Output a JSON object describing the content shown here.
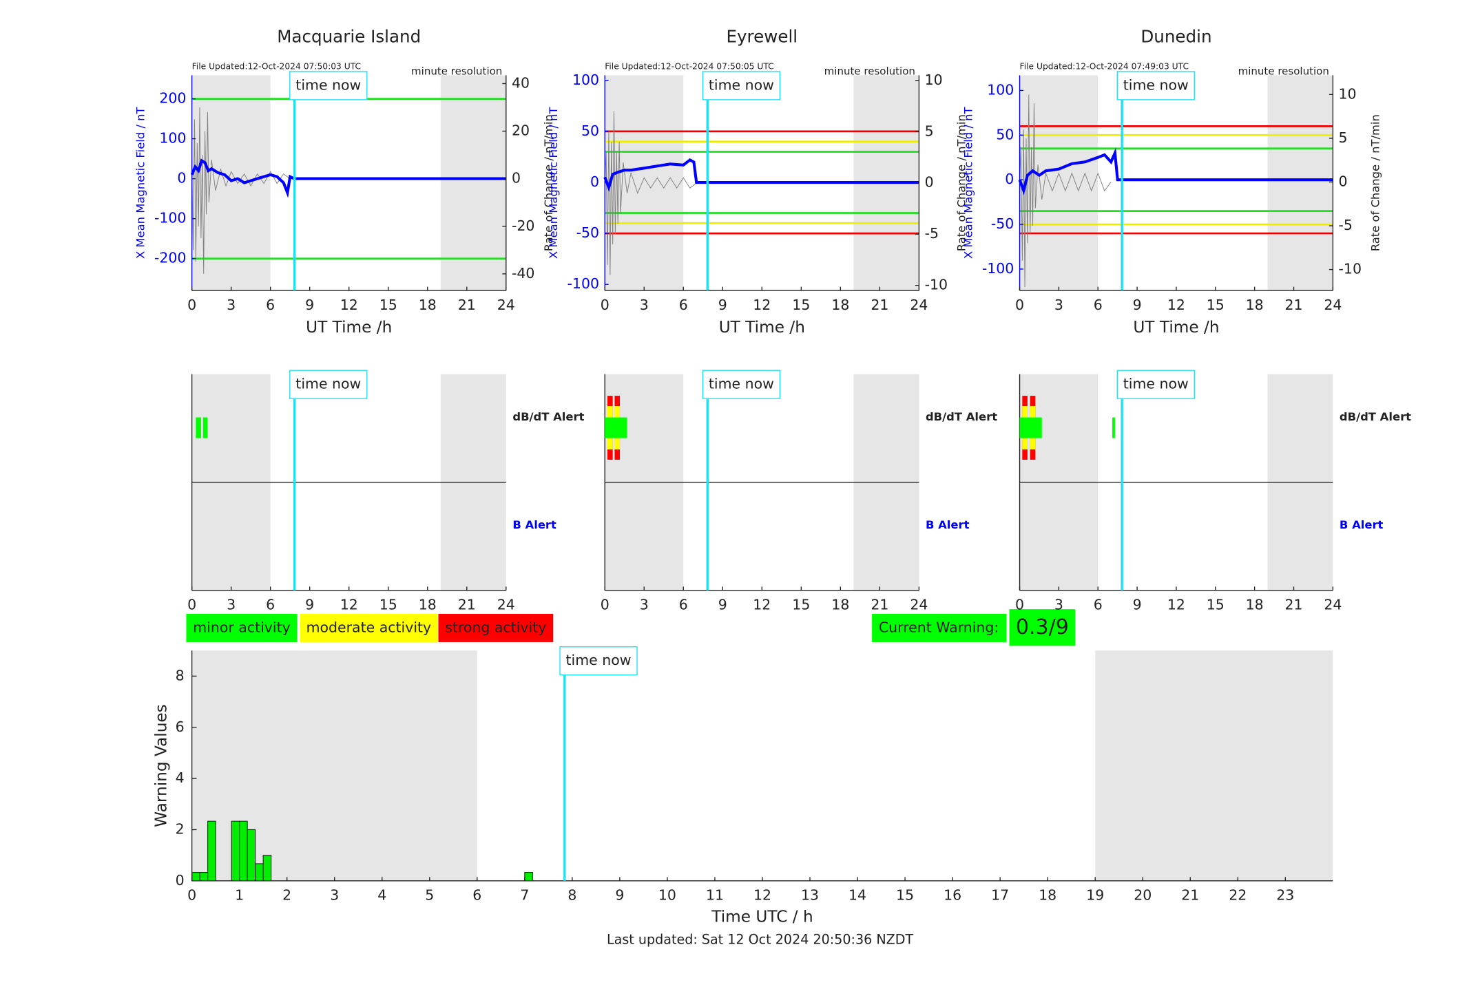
{
  "chart_data": [
    {
      "type": "line",
      "title": "Macquarie Island",
      "file_updated": "File Updated:12-Oct-2024 07:50:03 UTC",
      "resolution": "minute resolution",
      "xlabel": "UT Time /h",
      "ylabel": "X Mean Magnetic Field / nT",
      "y2label": "Rate of Change / nT/min",
      "ylabel_color": "#0000ff",
      "xlim": [
        0,
        24
      ],
      "xticks": [
        0,
        3,
        6,
        9,
        12,
        15,
        18,
        21,
        24
      ],
      "ylim": [
        -280,
        259
      ],
      "yticks": [
        -200,
        -100,
        0,
        100,
        200
      ],
      "y2lim": [
        -47,
        43.5
      ],
      "y2ticks": [
        -40,
        -20,
        0,
        20,
        40
      ],
      "night": [
        [
          0,
          6
        ],
        [
          19,
          24
        ]
      ],
      "time_now": 7.84,
      "time_now_label": "time now",
      "thresholds": [
        {
          "value": 200,
          "color": "#22dd22"
        },
        {
          "value": -200,
          "color": "#22dd22"
        }
      ],
      "series": [
        {
          "color": "#808080",
          "axis": "y2",
          "x": [
            0,
            0.1,
            0.2,
            0.3,
            0.4,
            0.5,
            0.6,
            0.7,
            0.8,
            0.9,
            1,
            1.1,
            1.2,
            1.3,
            1.5,
            1.8,
            2.2,
            2.6,
            3,
            3.5,
            4,
            4.5,
            5,
            5.5,
            6,
            6.5,
            7,
            7.5
          ],
          "values": [
            5,
            -30,
            25,
            -35,
            15,
            -20,
            30,
            -25,
            10,
            -40,
            20,
            -15,
            28,
            -10,
            8,
            -5,
            4,
            -3,
            3,
            -2,
            2,
            -3,
            2,
            -2,
            3,
            -2,
            2,
            0
          ]
        },
        {
          "color": "#0000ff",
          "x": [
            0,
            0.25,
            0.5,
            0.75,
            1,
            1.25,
            1.5,
            2,
            2.5,
            3,
            3.5,
            4,
            4.5,
            5,
            5.5,
            6,
            6.5,
            7,
            7.3,
            7.5,
            7.8,
            8,
            24
          ],
          "values": [
            10,
            30,
            20,
            45,
            40,
            20,
            25,
            15,
            10,
            -5,
            0,
            -10,
            -5,
            0,
            5,
            10,
            5,
            -10,
            -35,
            5,
            0,
            0,
            0
          ]
        }
      ]
    },
    {
      "type": "line",
      "title": "Eyrewell",
      "file_updated": "File Updated:12-Oct-2024 07:50:05 UTC",
      "resolution": "minute resolution",
      "xlabel": "UT Time /h",
      "ylabel": "X Mean Magnetic Field / nT",
      "y2label": "Rate of Change / nT/min",
      "ylabel_color": "#0000ff",
      "xlim": [
        0,
        24
      ],
      "xticks": [
        0,
        3,
        6,
        9,
        12,
        15,
        18,
        21,
        24
      ],
      "ylim": [
        -106,
        105
      ],
      "yticks": [
        -100,
        -50,
        0,
        50,
        100
      ],
      "y2lim": [
        -10.5,
        10.5
      ],
      "y2ticks": [
        -10,
        -5,
        0,
        5,
        10
      ],
      "night": [
        [
          0,
          6
        ],
        [
          19,
          24
        ]
      ],
      "time_now": 7.84,
      "time_now_label": "time now",
      "thresholds": [
        {
          "value": 50,
          "color": "#ee0000"
        },
        {
          "value": 40,
          "color": "#eeee00"
        },
        {
          "value": 30,
          "color": "#22dd22"
        },
        {
          "value": -30,
          "color": "#22dd22"
        },
        {
          "value": -40,
          "color": "#eeee00"
        },
        {
          "value": -50,
          "color": "#ee0000"
        }
      ],
      "series": [
        {
          "color": "#808080",
          "axis": "y2",
          "x": [
            0,
            0.1,
            0.2,
            0.3,
            0.4,
            0.5,
            0.6,
            0.7,
            0.8,
            0.9,
            1,
            1.1,
            1.2,
            1.4,
            1.7,
            2,
            2.5,
            3,
            3.5,
            4,
            4.5,
            5,
            5.5,
            6,
            6.5,
            7
          ],
          "values": [
            0,
            3,
            -8,
            5,
            -9,
            4,
            -6,
            7,
            -5,
            3,
            -4,
            4,
            -3,
            2,
            -1,
            1,
            -1,
            0.5,
            -0.5,
            0.5,
            -0.5,
            0.5,
            -0.5,
            0.5,
            -0.5,
            0
          ]
        },
        {
          "color": "#0000ff",
          "x": [
            0,
            0.3,
            0.6,
            1,
            1.5,
            2,
            3,
            4,
            5,
            6,
            6.5,
            6.8,
            7,
            24
          ],
          "values": [
            5,
            -5,
            8,
            10,
            12,
            12,
            14,
            16,
            18,
            17,
            22,
            20,
            0,
            0
          ]
        }
      ]
    },
    {
      "type": "line",
      "title": "Dunedin",
      "file_updated": "File Updated:12-Oct-2024 07:49:03 UTC",
      "resolution": "minute resolution",
      "xlabel": "UT Time /h",
      "ylabel": "X Mean Magnetic Field / nT",
      "y2label": "Rate of Change / nT/min",
      "ylabel_color": "#0000ff",
      "xlim": [
        0,
        24
      ],
      "xticks": [
        0,
        3,
        6,
        9,
        12,
        15,
        18,
        21,
        24
      ],
      "ylim": [
        -124,
        117
      ],
      "yticks": [
        -100,
        -50,
        0,
        50,
        100
      ],
      "y2lim": [
        -12.4,
        12.2
      ],
      "y2ticks": [
        -10,
        -5,
        0,
        5,
        10
      ],
      "night": [
        [
          0,
          6
        ],
        [
          19,
          24
        ]
      ],
      "time_now": 7.84,
      "time_now_label": "time now",
      "thresholds": [
        {
          "value": 60,
          "color": "#ee0000"
        },
        {
          "value": 50,
          "color": "#eeee00"
        },
        {
          "value": 35,
          "color": "#22dd22"
        },
        {
          "value": -35,
          "color": "#22dd22"
        },
        {
          "value": -50,
          "color": "#eeee00"
        },
        {
          "value": -60,
          "color": "#ee0000"
        }
      ],
      "series": [
        {
          "color": "#808080",
          "axis": "y2",
          "x": [
            0,
            0.1,
            0.2,
            0.3,
            0.4,
            0.5,
            0.6,
            0.7,
            0.8,
            0.9,
            1,
            1.1,
            1.2,
            1.4,
            1.7,
            2,
            2.5,
            3,
            3.5,
            4,
            4.5,
            5,
            5.5,
            6,
            6.5,
            7
          ],
          "values": [
            0,
            4,
            -9,
            6,
            -12,
            5,
            -7,
            10,
            -6,
            4,
            -5,
            9,
            -3,
            2,
            -2,
            1,
            -1,
            1,
            -1,
            1,
            -1,
            1,
            -1,
            1,
            -1,
            0
          ]
        },
        {
          "color": "#0000ff",
          "x": [
            0,
            0.3,
            0.6,
            1,
            1.5,
            2,
            3,
            4,
            5,
            6,
            6.5,
            7,
            7.3,
            7.5,
            8,
            24
          ],
          "values": [
            0,
            -12,
            5,
            10,
            5,
            10,
            12,
            18,
            20,
            25,
            28,
            20,
            30,
            0,
            0,
            0
          ]
        }
      ]
    },
    {
      "type": "alert",
      "xlim": [
        0,
        24
      ],
      "xticks": [
        0,
        3,
        6,
        9,
        12,
        15,
        18,
        21,
        24
      ],
      "night": [
        [
          0,
          6
        ],
        [
          19,
          24
        ]
      ],
      "time_now": 7.84,
      "time_now_label": "time now",
      "dbdt_label": "dB/dT Alert",
      "b_label": "B Alert",
      "dbdt": [
        {
          "start": 0.3,
          "end": 0.7,
          "level": 1
        },
        {
          "start": 0.85,
          "end": 1.2,
          "level": 1
        }
      ]
    },
    {
      "type": "alert",
      "xlim": [
        0,
        24
      ],
      "xticks": [
        0,
        3,
        6,
        9,
        12,
        15,
        18,
        21,
        24
      ],
      "night": [
        [
          0,
          6
        ],
        [
          19,
          24
        ]
      ],
      "time_now": 7.84,
      "time_now_label": "time now",
      "dbdt_label": "dB/dT Alert",
      "b_label": "B Alert",
      "dbdt": [
        {
          "start": 0,
          "end": 1.7,
          "level": 1
        },
        {
          "start": 0.2,
          "end": 0.6,
          "level": 3
        },
        {
          "start": 0.75,
          "end": 1.15,
          "level": 3
        }
      ]
    },
    {
      "type": "alert",
      "xlim": [
        0,
        24
      ],
      "xticks": [
        0,
        3,
        6,
        9,
        12,
        15,
        18,
        21,
        24
      ],
      "night": [
        [
          0,
          6
        ],
        [
          19,
          24
        ]
      ],
      "time_now": 7.84,
      "time_now_label": "time now",
      "dbdt_label": "dB/dT Alert",
      "b_label": "B Alert",
      "dbdt": [
        {
          "start": 0,
          "end": 1.7,
          "level": 1
        },
        {
          "start": 0.2,
          "end": 0.6,
          "level": 3
        },
        {
          "start": 0.8,
          "end": 1.2,
          "level": 3
        },
        {
          "start": 7.1,
          "end": 7.3,
          "level": 1
        }
      ]
    },
    {
      "type": "bar",
      "xlabel": "Time UTC / h",
      "ylabel": "Warning Values",
      "color": "#00ee00",
      "xlim": [
        0,
        24
      ],
      "xticks": [
        0,
        1,
        2,
        3,
        4,
        5,
        6,
        7,
        8,
        9,
        10,
        11,
        12,
        13,
        14,
        15,
        16,
        17,
        18,
        19,
        20,
        21,
        22,
        23
      ],
      "ylim": [
        0,
        9
      ],
      "yticks": [
        0,
        2,
        4,
        6,
        8
      ],
      "night": [
        [
          0,
          6
        ],
        [
          19,
          24
        ]
      ],
      "time_now": 7.84,
      "time_now_label": "time now",
      "x": [
        0,
        0.1667,
        0.3333,
        0.8333,
        1,
        1.1667,
        1.3333,
        1.5,
        7
      ],
      "values": [
        0.33,
        0.33,
        2.33,
        2.33,
        2.33,
        2,
        0.67,
        1,
        0.33
      ]
    }
  ],
  "legend": [
    {
      "label": "minor activity",
      "color": "#00ff00"
    },
    {
      "label": "moderate activity",
      "color": "#ffff00"
    },
    {
      "label": "strong activity",
      "color": "#ff0000"
    }
  ],
  "current_warning": {
    "label": "Current Warning:",
    "value": "0.3/9"
  },
  "footer": "Last updated: Sat 12 Oct 2024 20:50:36 NZDT"
}
